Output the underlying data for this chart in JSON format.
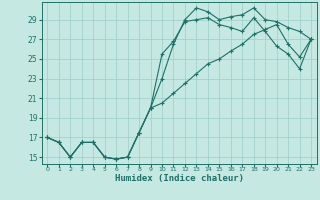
{
  "xlabel": "Humidex (Indice chaleur)",
  "xlim": [
    -0.5,
    23.5
  ],
  "ylim": [
    14.3,
    30.8
  ],
  "x_ticks": [
    0,
    1,
    2,
    3,
    4,
    5,
    6,
    7,
    8,
    9,
    10,
    11,
    12,
    13,
    14,
    15,
    16,
    17,
    18,
    19,
    20,
    21,
    22,
    23
  ],
  "y_ticks": [
    15,
    17,
    19,
    21,
    23,
    25,
    27,
    29
  ],
  "bg_color": "#c5e8e2",
  "line_color": "#1e7068",
  "grid_color": "#9ecdc7",
  "line1_y": [
    17.0,
    16.5,
    15.0,
    16.5,
    16.5,
    15.0,
    14.8,
    15.0,
    17.5,
    20.0,
    23.0,
    26.5,
    29.0,
    30.2,
    29.8,
    29.0,
    29.3,
    29.5,
    30.2,
    29.0,
    28.8,
    28.2,
    27.8,
    27.0
  ],
  "line2_y": [
    17.0,
    16.5,
    15.0,
    16.5,
    16.5,
    15.0,
    14.8,
    15.0,
    17.5,
    20.0,
    25.5,
    26.8,
    28.8,
    29.0,
    29.2,
    28.5,
    28.2,
    27.8,
    29.2,
    27.8,
    26.3,
    25.5,
    24.0,
    27.0
  ],
  "line3_y": [
    17.0,
    16.5,
    15.0,
    16.5,
    16.5,
    15.0,
    14.8,
    15.0,
    17.5,
    20.0,
    20.5,
    21.5,
    22.5,
    23.5,
    24.5,
    25.0,
    25.8,
    26.5,
    27.5,
    28.0,
    28.5,
    26.5,
    25.2,
    27.0
  ]
}
